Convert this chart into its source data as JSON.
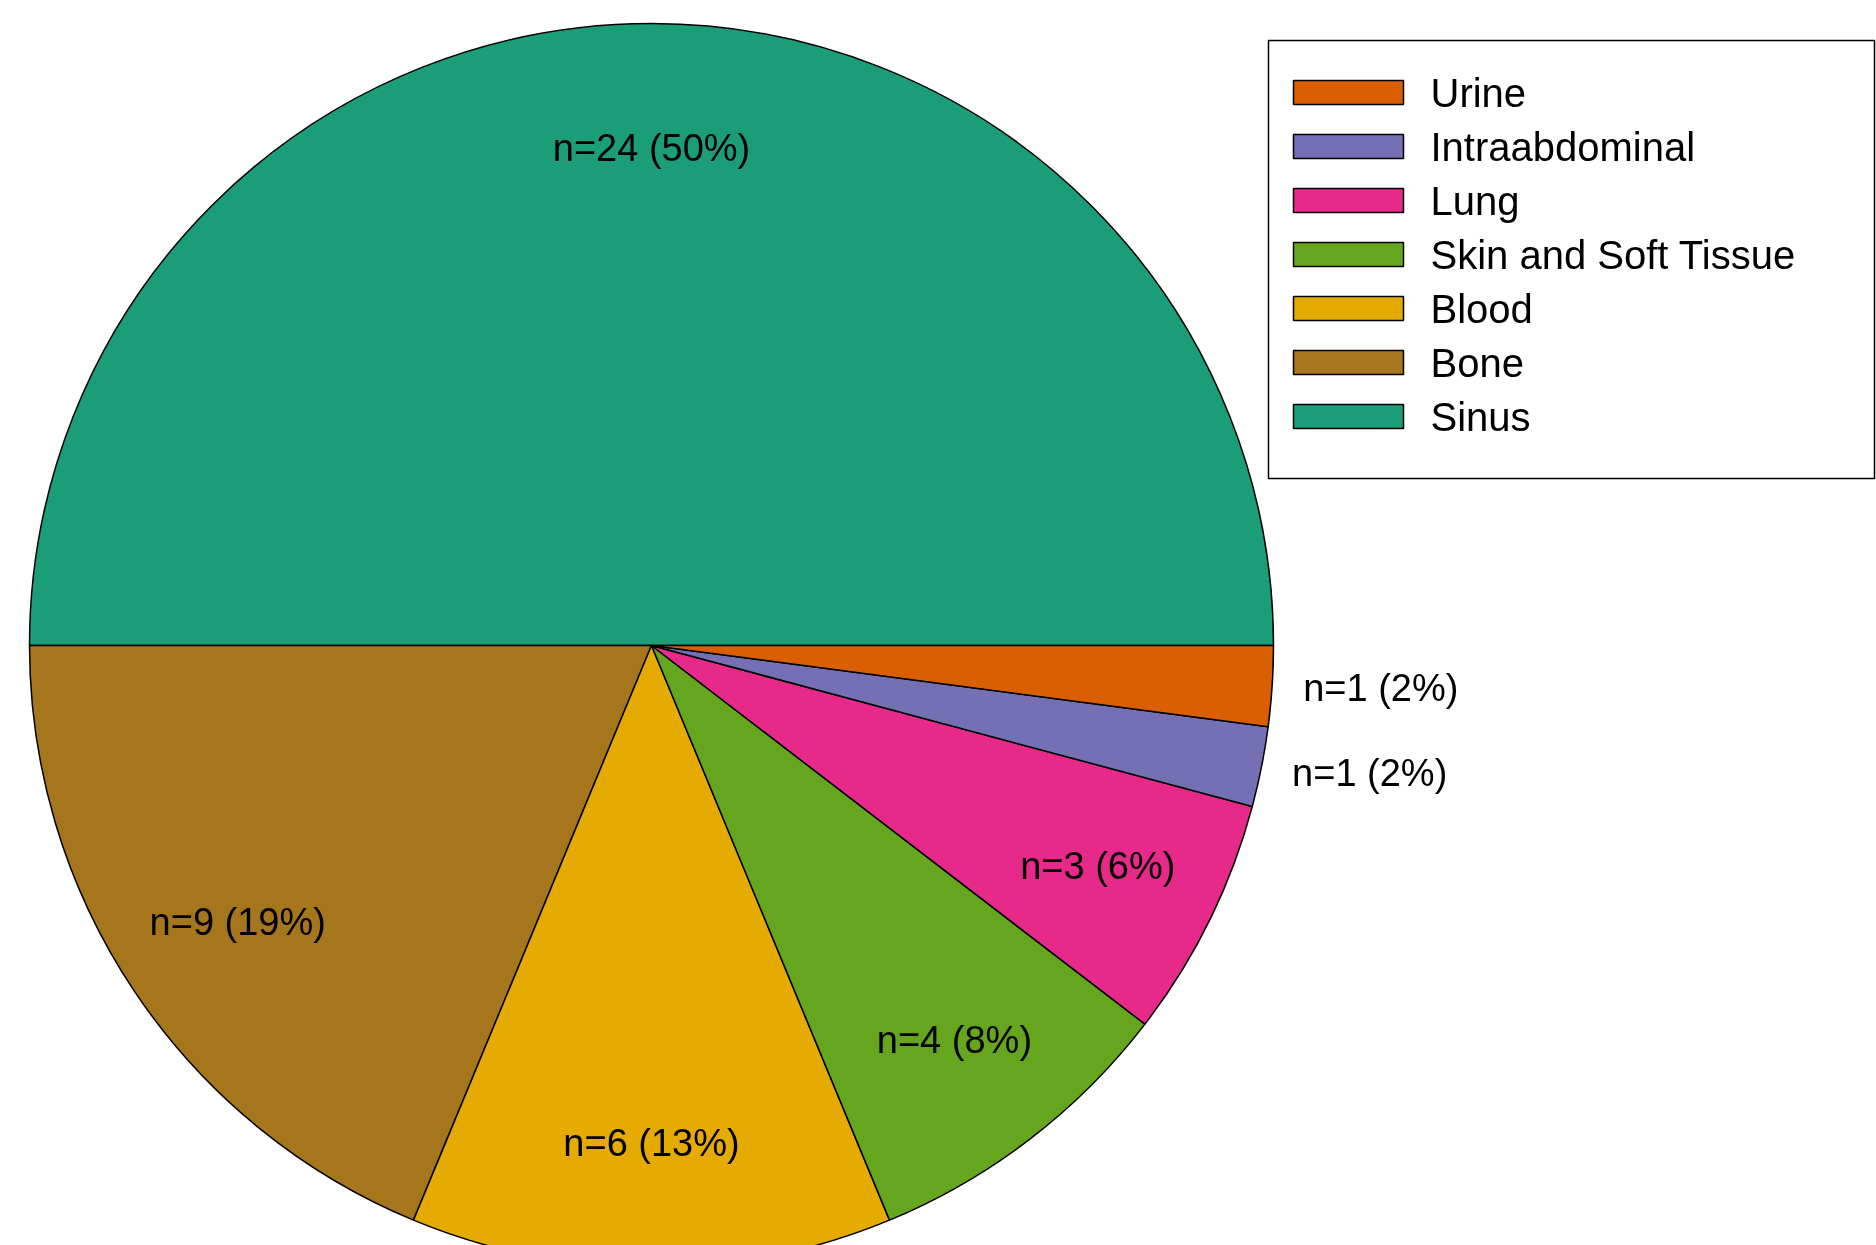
{
  "chart_data": {
    "type": "pie",
    "categories": [
      "Urine",
      "Intraabdominal",
      "Lung",
      "Skin and Soft Tissue",
      "Blood",
      "Bone",
      "Sinus"
    ],
    "values": [
      1,
      1,
      3,
      4,
      6,
      9,
      24
    ],
    "value_labels": [
      "n=1 (2%)",
      "n=1 (2%)",
      "n=3 (6%)",
      "n=4 (8%)",
      "n=6 (13%)",
      "n=9 (19%)",
      "n=24 (50%)"
    ],
    "colors": [
      "#d95f02",
      "#7570b3",
      "#e7298a",
      "#66a61e",
      "#e6ab02",
      "#a6761d",
      "#1b9e77"
    ],
    "legend": "top right"
  }
}
